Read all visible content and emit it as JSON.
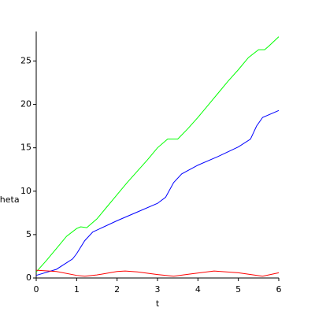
{
  "chart_data": {
    "type": "line",
    "xlabel": "t",
    "ylabel": "theta",
    "xlim": [
      0,
      6
    ],
    "ylim": [
      0,
      28.4
    ],
    "xticks": [
      0,
      1,
      2,
      3,
      4,
      5,
      6
    ],
    "yticks": [
      0,
      5,
      10,
      15,
      20,
      25
    ],
    "series": [
      {
        "color": "#00ff00",
        "x": [
          0,
          0.25,
          0.5,
          0.75,
          1.0,
          1.1,
          1.25,
          1.5,
          1.75,
          2.0,
          2.25,
          2.5,
          2.75,
          3.0,
          3.25,
          3.5,
          3.75,
          4.0,
          4.25,
          4.5,
          4.75,
          5.0,
          5.25,
          5.5,
          5.65,
          5.75,
          6.0
        ],
        "values": [
          0.7,
          2.0,
          3.4,
          4.8,
          5.7,
          5.9,
          5.8,
          6.8,
          8.2,
          9.6,
          11.0,
          12.3,
          13.6,
          15.0,
          16.0,
          16.0,
          17.2,
          18.5,
          19.9,
          21.3,
          22.7,
          24.0,
          25.4,
          26.3,
          26.3,
          26.7,
          27.8
        ]
      },
      {
        "color": "#0000ff",
        "x": [
          0,
          0.5,
          0.9,
          1.0,
          1.2,
          1.4,
          2.0,
          2.5,
          3.0,
          3.2,
          3.4,
          3.6,
          4.0,
          4.5,
          5.0,
          5.3,
          5.45,
          5.6,
          6.0
        ],
        "values": [
          0.3,
          1.0,
          2.2,
          2.8,
          4.3,
          5.3,
          6.6,
          7.6,
          8.6,
          9.3,
          11.0,
          12.0,
          13.0,
          14.0,
          15.1,
          16.0,
          17.5,
          18.5,
          19.3
        ]
      },
      {
        "color": "#ff0000",
        "x": [
          0,
          0.5,
          1.0,
          1.2,
          1.5,
          2.0,
          2.2,
          2.5,
          3.0,
          3.4,
          3.8,
          4.4,
          5.0,
          5.6,
          6.0
        ],
        "values": [
          0.9,
          0.75,
          0.3,
          0.2,
          0.35,
          0.75,
          0.8,
          0.7,
          0.4,
          0.2,
          0.45,
          0.8,
          0.6,
          0.2,
          0.6
        ]
      }
    ]
  }
}
